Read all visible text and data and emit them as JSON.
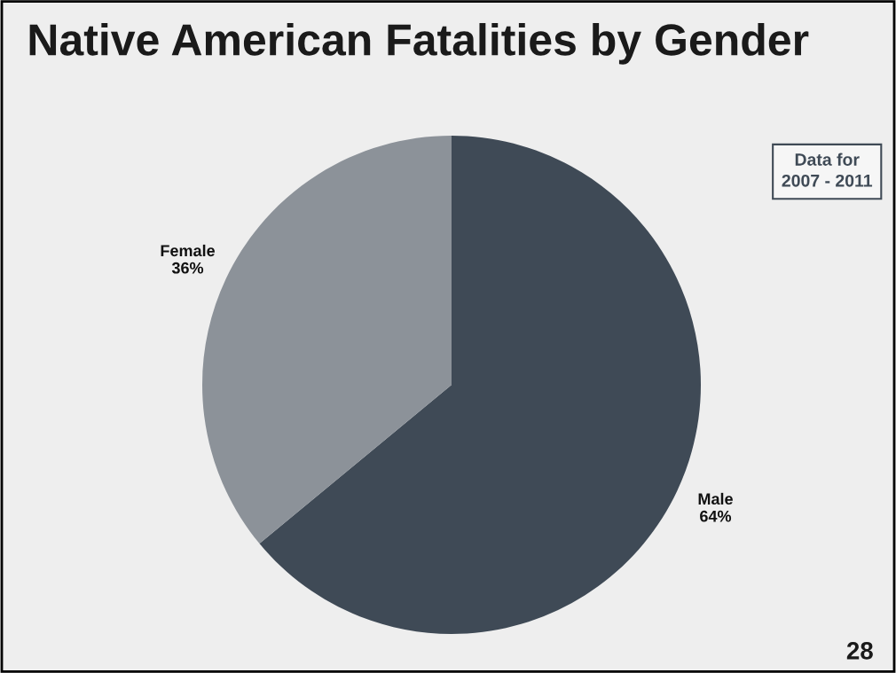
{
  "chart_data": {
    "type": "pie",
    "title": "Native American Fatalities by Gender",
    "categories": [
      "Male",
      "Female"
    ],
    "values": [
      64,
      36
    ],
    "colors": [
      "#3f4a56",
      "#8c9299"
    ],
    "value_labels": [
      "64%",
      "36%"
    ],
    "annotations": [
      "Data for\n2007 - 2011",
      "28"
    ],
    "legend": false
  }
}
